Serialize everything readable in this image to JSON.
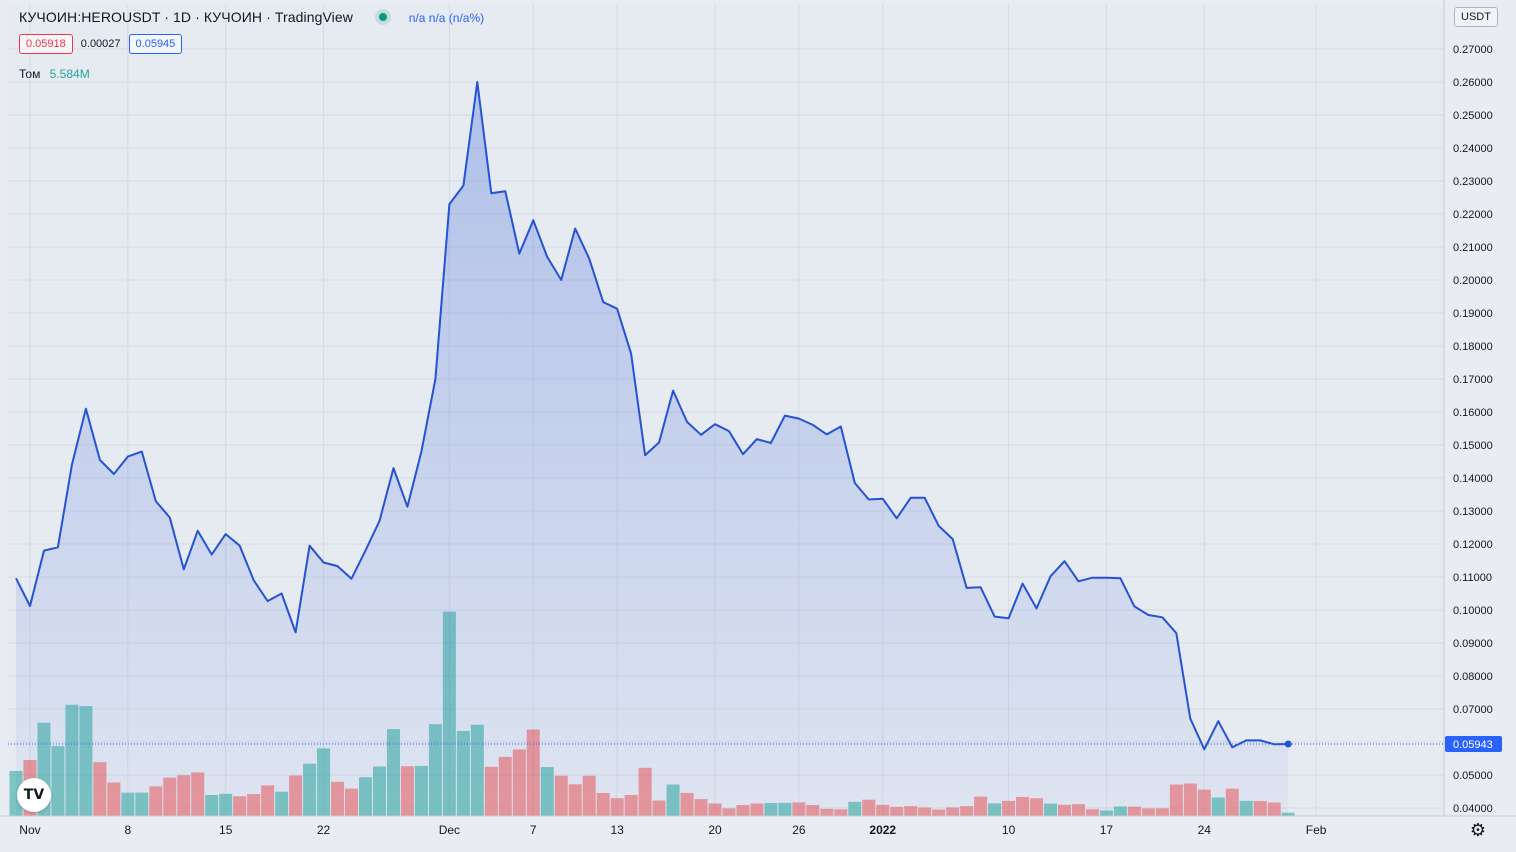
{
  "legend": {
    "symbol": "КУЧОИН:HEROUSDT · 1D · КУЧОИН · TradingView",
    "status_text": "n/a n/a (n/a%)"
  },
  "prices": {
    "bid": "0.05918",
    "spread": "0.00027",
    "ask": "0.05945"
  },
  "volume_label": {
    "name": "Том",
    "value": "5.584M"
  },
  "unit": "USDT",
  "colors": {
    "line": "#2453d6",
    "up": "#26a69a",
    "down": "#ef5350",
    "bg": "#e9edf3",
    "price_tag": "#2962ff"
  },
  "icons": {
    "logo": "tradingview-logo-icon",
    "settings": "gear-icon"
  },
  "chart_data": {
    "type": "area",
    "x_tick_labels": [
      "Nov",
      "8",
      "15",
      "22",
      "Dec",
      "7",
      "13",
      "20",
      "26",
      "2022",
      "10",
      "17",
      "24",
      "Feb"
    ],
    "y_tick_labels": [
      "0.27000",
      "0.26000",
      "0.25000",
      "0.24000",
      "0.23000",
      "0.22000",
      "0.21000",
      "0.20000",
      "0.19000",
      "0.18000",
      "0.17000",
      "0.16000",
      "0.15000",
      "0.14000",
      "0.13000",
      "0.12000",
      "0.11000",
      "0.10000",
      "0.09000",
      "0.08000",
      "0.07000",
      "0.06000",
      "0.05000",
      "0.04000"
    ],
    "ylim": [
      0.0375,
      0.2745
    ],
    "last_price": "0.05943",
    "last_value": 0.0594,
    "x_start": "2021-10-31",
    "x_range": [
      "2021-10-31",
      "2022-02-06"
    ],
    "close": [
      0.1096,
      0.1012,
      0.118,
      0.119,
      0.144,
      0.161,
      0.1455,
      0.1412,
      0.1465,
      0.148,
      0.133,
      0.128,
      0.1123,
      0.124,
      0.1168,
      0.123,
      0.1195,
      0.109,
      0.1027,
      0.105,
      0.0932,
      0.1195,
      0.1144,
      0.1133,
      0.1095,
      0.118,
      0.127,
      0.143,
      0.1313,
      0.148,
      0.17,
      0.223,
      0.2286,
      0.26,
      0.2263,
      0.2269,
      0.208,
      0.2181,
      0.207,
      0.2,
      0.2156,
      0.2065,
      0.1933,
      0.1913,
      0.1777,
      0.1469,
      0.1508,
      0.1665,
      0.157,
      0.1531,
      0.1563,
      0.1542,
      0.1472,
      0.1518,
      0.1506,
      0.1589,
      0.158,
      0.1561,
      0.1532,
      0.1556,
      0.1385,
      0.1335,
      0.1337,
      0.1278,
      0.134,
      0.134,
      0.1255,
      0.1215,
      0.1067,
      0.1069,
      0.098,
      0.0975,
      0.108,
      0.1005,
      0.1102,
      0.1148,
      0.1087,
      0.1098,
      0.1098,
      0.1096,
      0.1011,
      0.0985,
      0.0978,
      0.093,
      0.0671,
      0.0578,
      0.0663,
      0.0584,
      0.0605,
      0.0605,
      0.0593,
      0.0594
    ],
    "volume_pct": [
      41.0,
      50.9,
      84.8,
      63.5,
      101.1,
      99.9,
      48.9,
      30.4,
      21.2,
      21.2,
      26.9,
      34.9,
      37.1,
      39.6,
      19.1,
      20.2,
      18.0,
      20.0,
      27.8,
      22.1,
      36.8,
      47.6,
      61.5,
      31.1,
      24.9,
      35.3,
      45.0,
      79.0,
      45.2,
      45.5,
      83.5,
      185.8,
      77.3,
      83.0,
      44.7,
      53.7,
      60.5,
      78.6,
      44.5,
      36.6,
      28.8,
      36.6,
      20.9,
      16.2,
      19.1,
      43.8,
      14.1,
      28.6,
      21.0,
      15.4,
      11.4,
      6.9,
      10.0,
      11.4,
      11.8,
      12.0,
      12.4,
      10.0,
      6.5,
      6.1,
      12.9,
      14.8,
      10.1,
      8.3,
      9.0,
      7.8,
      5.9,
      7.8,
      9.0,
      17.6,
      11.5,
      13.7,
      17.3,
      16.1,
      11.3,
      10.2,
      10.8,
      6.1,
      5.0,
      8.6,
      8.5,
      6.9,
      7.0,
      28.6,
      29.5,
      24.0,
      16.8,
      24.8,
      13.8,
      13.6,
      12.3,
      3.0
    ],
    "volume_up": [
      1,
      0,
      1,
      1,
      1,
      1,
      0,
      0,
      1,
      1,
      0,
      0,
      0,
      0,
      1,
      1,
      0,
      0,
      0,
      1,
      0,
      1,
      1,
      0,
      0,
      1,
      1,
      1,
      0,
      1,
      1,
      1,
      1,
      1,
      0,
      0,
      0,
      0,
      1,
      0,
      0,
      0,
      0,
      0,
      0,
      0,
      0,
      1,
      0,
      0,
      0,
      0,
      0,
      0,
      1,
      1,
      0,
      0,
      0,
      0,
      1,
      0,
      0,
      0,
      0,
      0,
      0,
      0,
      0,
      0,
      1,
      0,
      0,
      0,
      1,
      0,
      0,
      0,
      1,
      1,
      0,
      0,
      0,
      0,
      0,
      0,
      1,
      0,
      1,
      0,
      0,
      1
    ]
  }
}
